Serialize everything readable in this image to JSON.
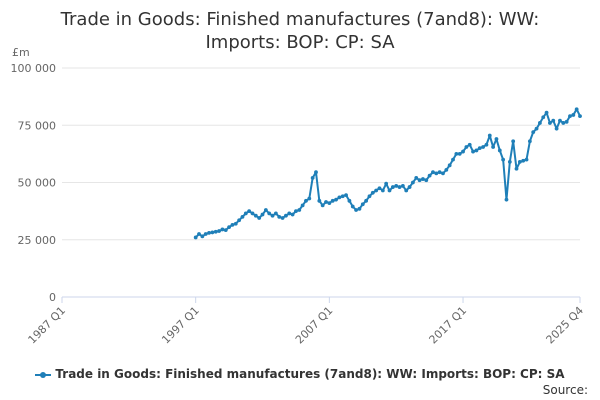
{
  "chart_data": {
    "type": "line",
    "title_lines": [
      "Trade in Goods: Finished manufactures (7and8): WW:",
      "Imports: BOP: CP: SA"
    ],
    "ylabel": "£m",
    "ylim": [
      0,
      100000
    ],
    "yticks": [
      {
        "value": 0,
        "label": "0"
      },
      {
        "value": 25000,
        "label": "25 000"
      },
      {
        "value": 50000,
        "label": "50 000"
      },
      {
        "value": 75000,
        "label": "75 000"
      },
      {
        "value": 100000,
        "label": "100 000"
      }
    ],
    "xticks": [
      {
        "value": 1987.0,
        "label": "1987 Q1"
      },
      {
        "value": 1997.0,
        "label": "1997 Q1"
      },
      {
        "value": 2007.0,
        "label": "2007 Q1"
      },
      {
        "value": 2017.0,
        "label": "2017 Q1"
      },
      {
        "value": 2025.75,
        "label": "2025 Q4"
      }
    ],
    "xlim": [
      1987.0,
      2025.75
    ],
    "grid": true,
    "color": "#1f7fb8",
    "legend_position": "bottom",
    "series": [
      {
        "name": "Trade in Goods: Finished manufactures (7and8): WW: Imports: BOP: CP: SA",
        "points": [
          [
            1997.0,
            26000
          ],
          [
            1997.25,
            27500
          ],
          [
            1997.5,
            26500
          ],
          [
            1997.75,
            27500
          ],
          [
            1998.0,
            28000
          ],
          [
            1998.25,
            28200
          ],
          [
            1998.5,
            28500
          ],
          [
            1998.75,
            28800
          ],
          [
            1999.0,
            29500
          ],
          [
            1999.25,
            29200
          ],
          [
            1999.5,
            30500
          ],
          [
            1999.75,
            31500
          ],
          [
            2000.0,
            32000
          ],
          [
            2000.25,
            33500
          ],
          [
            2000.5,
            35000
          ],
          [
            2000.75,
            36500
          ],
          [
            2001.0,
            37500
          ],
          [
            2001.25,
            36500
          ],
          [
            2001.5,
            35500
          ],
          [
            2001.75,
            34500
          ],
          [
            2002.0,
            36000
          ],
          [
            2002.25,
            38000
          ],
          [
            2002.5,
            36500
          ],
          [
            2002.75,
            35500
          ],
          [
            2003.0,
            36500
          ],
          [
            2003.25,
            35000
          ],
          [
            2003.5,
            34500
          ],
          [
            2003.75,
            35500
          ],
          [
            2004.0,
            36500
          ],
          [
            2004.25,
            36000
          ],
          [
            2004.5,
            37500
          ],
          [
            2004.75,
            38000
          ],
          [
            2005.0,
            40000
          ],
          [
            2005.25,
            42000
          ],
          [
            2005.5,
            43000
          ],
          [
            2005.75,
            52000
          ],
          [
            2006.0,
            54500
          ],
          [
            2006.25,
            42000
          ],
          [
            2006.5,
            40000
          ],
          [
            2006.75,
            41500
          ],
          [
            2007.0,
            41000
          ],
          [
            2007.25,
            42000
          ],
          [
            2007.5,
            42500
          ],
          [
            2007.75,
            43500
          ],
          [
            2008.0,
            44000
          ],
          [
            2008.25,
            44500
          ],
          [
            2008.5,
            42000
          ],
          [
            2008.75,
            39500
          ],
          [
            2009.0,
            38000
          ],
          [
            2009.25,
            38500
          ],
          [
            2009.5,
            40500
          ],
          [
            2009.75,
            42000
          ],
          [
            2010.0,
            44000
          ],
          [
            2010.25,
            45500
          ],
          [
            2010.5,
            46500
          ],
          [
            2010.75,
            47500
          ],
          [
            2011.0,
            46500
          ],
          [
            2011.25,
            49500
          ],
          [
            2011.5,
            46500
          ],
          [
            2011.75,
            48000
          ],
          [
            2012.0,
            48500
          ],
          [
            2012.25,
            48000
          ],
          [
            2012.5,
            48500
          ],
          [
            2012.75,
            46500
          ],
          [
            2013.0,
            48000
          ],
          [
            2013.25,
            50000
          ],
          [
            2013.5,
            52000
          ],
          [
            2013.75,
            51000
          ],
          [
            2014.0,
            51500
          ],
          [
            2014.25,
            51000
          ],
          [
            2014.5,
            53000
          ],
          [
            2014.75,
            54500
          ],
          [
            2015.0,
            54000
          ],
          [
            2015.25,
            54500
          ],
          [
            2015.5,
            54000
          ],
          [
            2015.75,
            55500
          ],
          [
            2016.0,
            57500
          ],
          [
            2016.25,
            60000
          ],
          [
            2016.5,
            62500
          ],
          [
            2016.75,
            62500
          ],
          [
            2017.0,
            63500
          ],
          [
            2017.25,
            65500
          ],
          [
            2017.5,
            66500
          ],
          [
            2017.75,
            63500
          ],
          [
            2018.0,
            64000
          ],
          [
            2018.25,
            65000
          ],
          [
            2018.5,
            65500
          ],
          [
            2018.75,
            66500
          ],
          [
            2019.0,
            70500
          ],
          [
            2019.25,
            65500
          ],
          [
            2019.5,
            69000
          ],
          [
            2019.75,
            64000
          ],
          [
            2020.0,
            60000
          ],
          [
            2020.25,
            42500
          ],
          [
            2020.5,
            59000
          ],
          [
            2020.75,
            68000
          ],
          [
            2021.0,
            56000
          ],
          [
            2021.25,
            59000
          ],
          [
            2021.5,
            59500
          ],
          [
            2021.75,
            60000
          ],
          [
            2022.0,
            68000
          ],
          [
            2022.25,
            72000
          ],
          [
            2022.5,
            73500
          ],
          [
            2022.75,
            76000
          ],
          [
            2023.0,
            78500
          ],
          [
            2023.25,
            80500
          ],
          [
            2023.5,
            76000
          ],
          [
            2023.75,
            77000
          ],
          [
            2024.0,
            73500
          ],
          [
            2024.25,
            77000
          ],
          [
            2024.5,
            76000
          ],
          [
            2024.75,
            76500
          ],
          [
            2025.0,
            79000
          ],
          [
            2025.25,
            79500
          ],
          [
            2025.5,
            82000
          ],
          [
            2025.75,
            79000
          ]
        ]
      }
    ]
  },
  "legend": {
    "entry": "Trade in Goods: Finished manufactures (7and8): WW: Imports: BOP: CP: SA"
  },
  "source_label": "Source:"
}
